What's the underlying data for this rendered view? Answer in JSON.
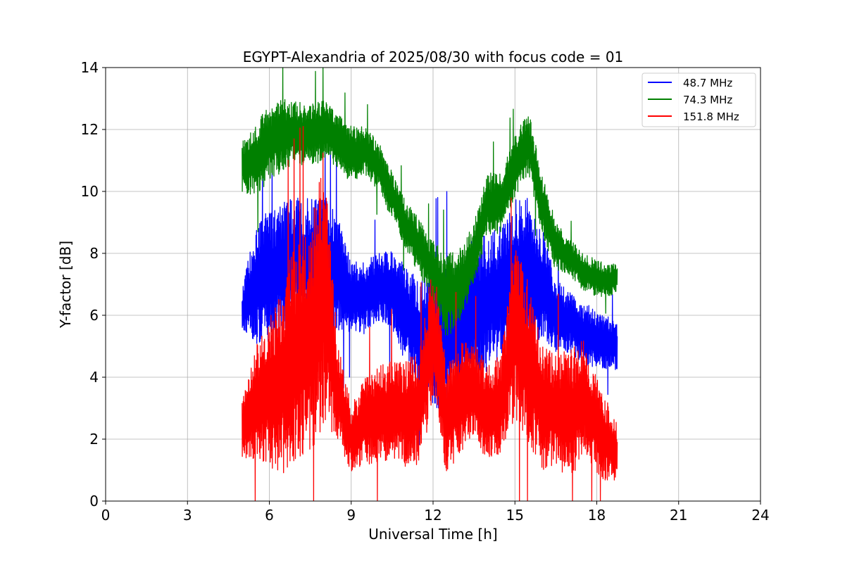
{
  "chart_data": {
    "type": "line",
    "title": "EGYPT-Alexandria of 2025/08/30 with focus code = 01",
    "xlabel": "Universal Time [h]",
    "ylabel": "Y-factor [dB]",
    "xlim": [
      0,
      24
    ],
    "ylim": [
      0,
      14
    ],
    "xticks": [
      0,
      3,
      6,
      9,
      12,
      15,
      18,
      21,
      24
    ],
    "yticks": [
      0,
      2,
      4,
      6,
      8,
      10,
      12,
      14
    ],
    "grid": true,
    "legend_position": "top-right",
    "x": [
      5.0,
      5.5,
      6.0,
      6.5,
      7.0,
      7.5,
      8.0,
      8.5,
      9.0,
      9.5,
      10.0,
      10.5,
      11.0,
      11.5,
      12.0,
      12.5,
      13.0,
      13.5,
      14.0,
      14.5,
      15.0,
      15.5,
      16.0,
      16.5,
      17.0,
      17.5,
      18.0,
      18.5,
      18.75
    ],
    "series": [
      {
        "name": "48.7 MHz",
        "color": "#0000ff",
        "mid": [
          6.2,
          7.0,
          7.2,
          7.6,
          7.8,
          7.8,
          7.6,
          7.3,
          6.5,
          6.6,
          6.9,
          6.8,
          6.0,
          5.4,
          5.3,
          5.2,
          5.6,
          6.2,
          6.4,
          6.8,
          7.2,
          7.4,
          7.0,
          6.0,
          5.8,
          5.4,
          5.2,
          5.1,
          5.0
        ],
        "spread": [
          0.6,
          2.0,
          2.2,
          2.2,
          2.0,
          2.0,
          2.2,
          2.0,
          1.2,
          1.2,
          1.1,
          1.3,
          1.6,
          1.8,
          2.2,
          2.4,
          2.0,
          2.4,
          2.2,
          2.2,
          2.8,
          2.4,
          1.8,
          1.2,
          1.0,
          1.0,
          1.0,
          0.8,
          0.8
        ]
      },
      {
        "name": "74.3 MHz",
        "color": "#008000",
        "mid": [
          10.8,
          11.0,
          11.6,
          11.8,
          11.9,
          11.8,
          12.0,
          11.6,
          11.2,
          11.3,
          10.8,
          9.9,
          8.9,
          8.2,
          7.4,
          6.6,
          7.0,
          8.0,
          9.6,
          9.6,
          10.8,
          11.6,
          9.6,
          8.2,
          7.9,
          7.4,
          7.2,
          7.1,
          7.3
        ],
        "spread": [
          0.8,
          1.2,
          1.2,
          1.2,
          1.0,
          1.0,
          1.0,
          0.9,
          0.9,
          0.8,
          0.8,
          0.8,
          0.8,
          0.9,
          1.0,
          1.4,
          1.2,
          1.0,
          1.0,
          1.0,
          1.0,
          1.0,
          1.0,
          0.8,
          0.6,
          0.6,
          0.6,
          0.5,
          0.5
        ]
      },
      {
        "name": "151.8 MHz",
        "color": "#ff0000",
        "mid": [
          2.2,
          3.2,
          3.5,
          4.0,
          4.8,
          5.0,
          7.0,
          3.6,
          2.0,
          2.6,
          2.8,
          3.0,
          2.8,
          3.0,
          5.5,
          2.6,
          3.4,
          3.5,
          2.8,
          3.2,
          5.5,
          4.5,
          3.0,
          3.0,
          2.7,
          3.4,
          2.4,
          1.8,
          1.5
        ],
        "spread": [
          1.0,
          1.8,
          2.4,
          3.2,
          3.6,
          3.6,
          4.5,
          1.6,
          1.1,
          1.4,
          1.6,
          1.6,
          1.8,
          1.8,
          2.4,
          1.8,
          1.8,
          1.6,
          1.6,
          1.6,
          2.8,
          2.6,
          2.0,
          1.8,
          2.2,
          1.8,
          1.6,
          1.2,
          1.0
        ]
      }
    ]
  }
}
